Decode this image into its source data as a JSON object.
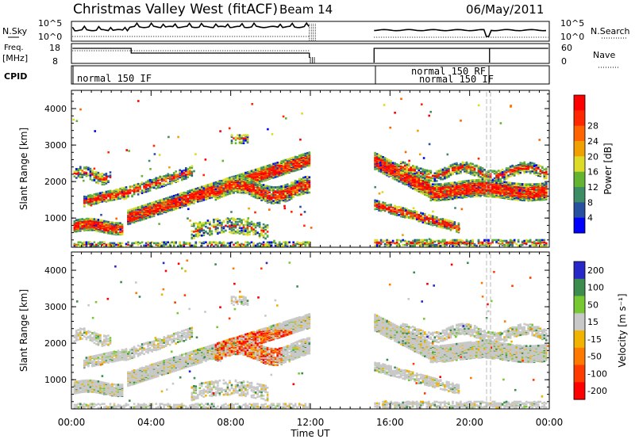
{
  "header": {
    "station": "Christmas Valley West (fitACF)",
    "beam": "Beam 14",
    "date": "06/May/2011"
  },
  "noise_panel": {
    "left_label": "N.Sky",
    "right_label": "N.Search",
    "left_ticks": [
      "10^5",
      "10^0"
    ],
    "right_ticks": [
      "10^5",
      "10^0"
    ]
  },
  "freq_panel": {
    "left_label_1": "Freq.",
    "left_label_2": "[MHz]",
    "right_label": "Nave",
    "left_ticks": [
      "18",
      "8"
    ],
    "right_ticks": [
      "60",
      "0"
    ]
  },
  "cpid": {
    "label": "CPID",
    "segments": [
      "normal 150 IF",
      "normal 150 RF",
      "normal 150 IF"
    ]
  },
  "colors": {
    "power": [
      "#0000ff",
      "#2850a0",
      "#3c8c64",
      "#64b432",
      "#dcdc28",
      "#f0a000",
      "#ff6400",
      "#ff2800",
      "#ff0000"
    ],
    "velocity": [
      "#2828c8",
      "#3c8c50",
      "#78c832",
      "#c8c8c8",
      "#f0b400",
      "#ff7800",
      "#ff3c00",
      "#ff0000"
    ]
  },
  "chart_data": [
    {
      "type": "heatmap",
      "name": "power",
      "ylabel": "Slant Range [km]",
      "yticks": [
        "1000",
        "2000",
        "3000",
        "4000"
      ],
      "yrange": [
        200,
        4500
      ],
      "colorbar_label": "Power [dB]",
      "colorbar_ticks": [
        "4",
        "8",
        "12",
        "16",
        "20",
        "24",
        "28"
      ]
    },
    {
      "type": "heatmap",
      "name": "velocity",
      "ylabel": "Slant Range [km]",
      "yticks": [
        "1000",
        "2000",
        "3000",
        "4000"
      ],
      "yrange": [
        200,
        4500
      ],
      "colorbar_label": "Velocity [m s⁻¹]",
      "colorbar_ticks": [
        "200",
        "100",
        "50",
        "15",
        "-15",
        "-50",
        "-100",
        "-200"
      ]
    }
  ],
  "xaxis": {
    "label": "Time UT",
    "ticks": [
      "00:00",
      "04:00",
      "08:00",
      "12:00",
      "16:00",
      "20:00",
      "00:00"
    ],
    "range_hours": [
      0,
      24
    ]
  }
}
